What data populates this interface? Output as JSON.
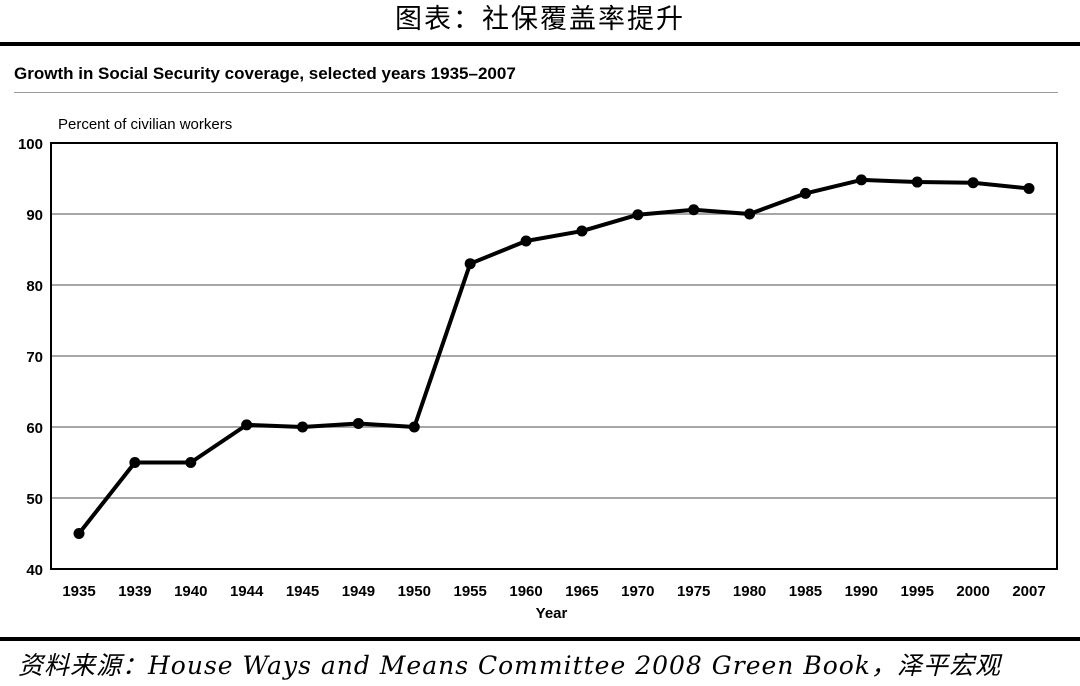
{
  "header": {
    "figure_title": "图表：社保覆盖率提升"
  },
  "footer": {
    "source": "资料来源：House Ways and Means Committee 2008 Green Book，泽平宏观"
  },
  "chart_data": {
    "type": "line",
    "title": "Growth in Social Security coverage, selected years 1935–2007",
    "xlabel": "Year",
    "ylabel": "Percent of civilian workers",
    "ylim": [
      40,
      100
    ],
    "yticks": [
      40,
      50,
      60,
      70,
      80,
      90,
      100
    ],
    "grid": true,
    "categories": [
      "1935",
      "1939",
      "1940",
      "1944",
      "1945",
      "1949",
      "1950",
      "1955",
      "1960",
      "1965",
      "1970",
      "1975",
      "1980",
      "1985",
      "1990",
      "1995",
      "2000",
      "2007"
    ],
    "series": [
      {
        "values": [
          45,
          55,
          55,
          60.3,
          60,
          60.5,
          60,
          83,
          86.2,
          87.6,
          89.9,
          90.6,
          90,
          92.9,
          94.8,
          94.5,
          94.4,
          93.6
        ]
      }
    ],
    "colors": {
      "line": "#000000",
      "grid": "#8a8a8a"
    }
  }
}
